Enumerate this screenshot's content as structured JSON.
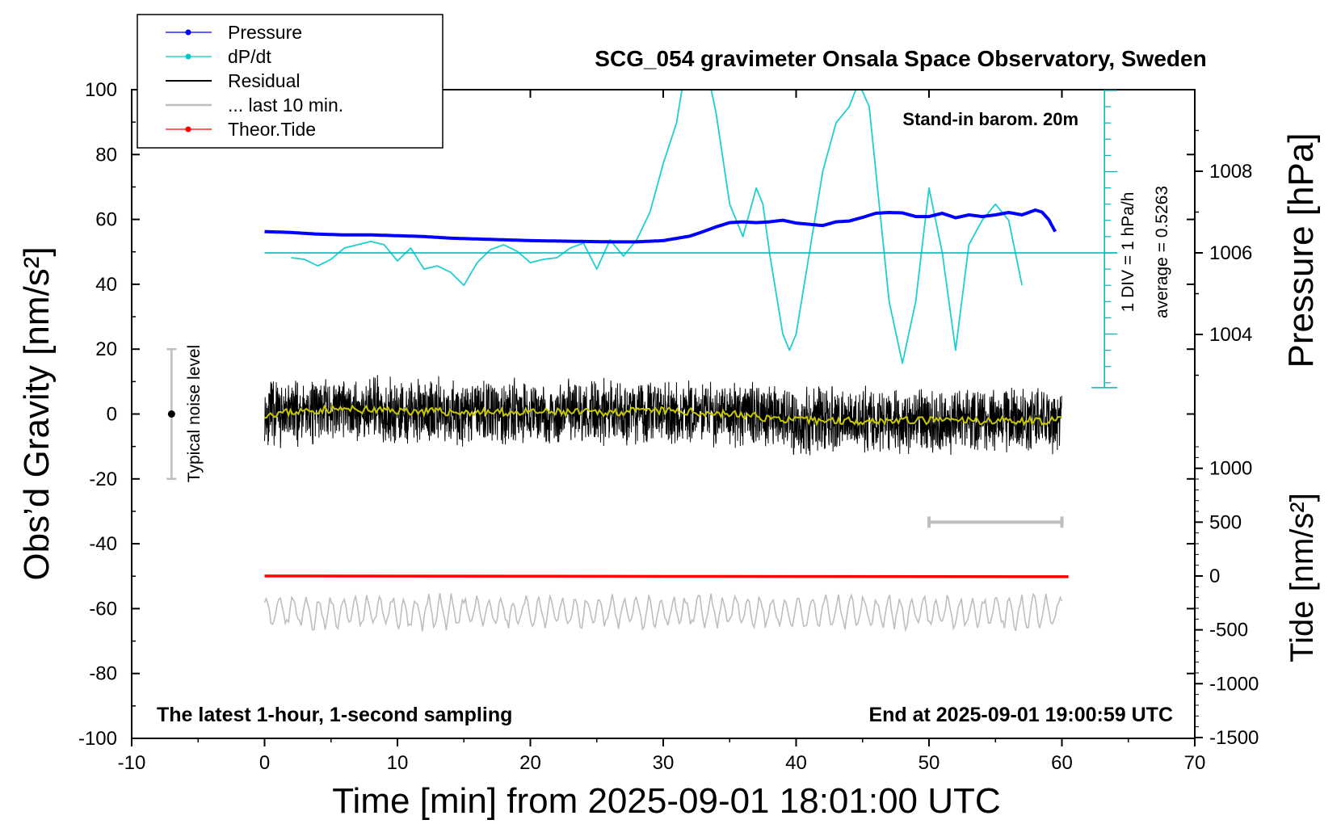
{
  "chart_data": {
    "type": "line",
    "title": "SCG_054 gravimeter Onsala Space Observatory, Sweden",
    "xlabel": "Time [min] from 2025-09-01 18:01:00 UTC",
    "ylabel_left": "Obs’d Gravity [nm/s²]",
    "ylabel_right_pressure": "Pressure [hPa]",
    "ylabel_right_tide": "Tide [nm/s²]",
    "xlim": [
      -10,
      70
    ],
    "ylim_left": [
      -100,
      100
    ],
    "x_ticks": [
      "-10",
      "0",
      "10",
      "20",
      "30",
      "40",
      "50",
      "60",
      "70"
    ],
    "y_ticks_left": [
      "100",
      "80",
      "60",
      "40",
      "20",
      "0",
      "-20",
      "-40",
      "-60",
      "-80",
      "-100"
    ],
    "pressure_ticks": [
      "1008",
      "1006",
      "1004"
    ],
    "tide_ticks": [
      "1000",
      "500",
      "0",
      "-500",
      "-1000",
      "-1500"
    ],
    "annotations": {
      "stand_in": "Stand-in barom. 20m",
      "div_label": "1 DIV = 1 hPa/h",
      "average_label": "average = 0.5263",
      "noise_label": "Typical noise level",
      "latest_label": "The latest 1-hour, 1-second sampling",
      "end_label": "End at 2025-09-01 19:00:59 UTC"
    },
    "legend": [
      {
        "name": "Pressure",
        "color": "#0000ff",
        "marker": true
      },
      {
        "name": "dP/dt",
        "color": "#00c8c8",
        "marker": true
      },
      {
        "name": "Residual",
        "color": "#000000",
        "marker": false
      },
      {
        "name": "... last 10 min.",
        "color": "#bebebe",
        "marker": false
      },
      {
        "name": "Theor.Tide",
        "color": "#ff0000",
        "marker": true
      }
    ],
    "series": [
      {
        "name": "Pressure",
        "units": "hPa",
        "color": "#0000ff",
        "x": [
          0,
          2,
          4,
          6,
          8,
          10,
          12,
          14,
          16,
          18,
          20,
          22,
          24,
          26,
          28,
          30,
          32,
          33,
          34,
          35,
          36,
          37,
          38,
          39,
          40,
          41,
          42,
          43,
          44,
          45,
          46,
          47,
          48,
          49,
          50,
          51,
          52,
          53,
          54,
          55,
          56,
          57,
          58,
          58.5,
          59,
          59.5
        ],
        "y": [
          1006.52,
          1006.5,
          1006.46,
          1006.44,
          1006.44,
          1006.42,
          1006.4,
          1006.36,
          1006.34,
          1006.32,
          1006.3,
          1006.29,
          1006.28,
          1006.27,
          1006.27,
          1006.3,
          1006.41,
          1006.52,
          1006.64,
          1006.74,
          1006.76,
          1006.74,
          1006.76,
          1006.8,
          1006.73,
          1006.7,
          1006.67,
          1006.76,
          1006.78,
          1006.87,
          1006.97,
          1006.99,
          1006.98,
          1006.89,
          1006.89,
          1006.97,
          1006.86,
          1006.93,
          1006.89,
          1006.93,
          1006.99,
          1006.93,
          1007.05,
          1007.0,
          1006.82,
          1006.52
        ]
      },
      {
        "name": "dP/dt",
        "units": "hPa/h",
        "color": "#00c8c8",
        "x": [
          2,
          3,
          4,
          5,
          6,
          7,
          8,
          9,
          10,
          11,
          12,
          13,
          14,
          15,
          16,
          17,
          18,
          19,
          20,
          21,
          22,
          23,
          24,
          25,
          26,
          27,
          28,
          29,
          30,
          31,
          31.5,
          32,
          33,
          33.5,
          34,
          35,
          36,
          37,
          37.5,
          38,
          39,
          39.5,
          40,
          41,
          42,
          43,
          44,
          44.7,
          45.5,
          46,
          47,
          48,
          49,
          50,
          51,
          52,
          53,
          54,
          55,
          56,
          57
        ],
        "y": [
          -0.3,
          -0.4,
          -0.8,
          -0.4,
          0.3,
          0.5,
          0.7,
          0.5,
          -0.5,
          0.3,
          -1.0,
          -0.8,
          -1.2,
          -2.0,
          -0.6,
          0.2,
          0.5,
          0.1,
          -0.6,
          -0.4,
          -0.3,
          0.3,
          0.6,
          -1.0,
          0.8,
          -0.2,
          0.8,
          2.5,
          5.5,
          8.0,
          10.5,
          10.5,
          10.5,
          10.5,
          8.5,
          3.0,
          1.0,
          4.0,
          3.0,
          0.0,
          -5.0,
          -6.0,
          -5.0,
          0.0,
          5.0,
          8.0,
          9.0,
          10.5,
          9.0,
          5.0,
          -3.0,
          -6.8,
          -3.0,
          4.0,
          0.0,
          -6.0,
          0.5,
          2.0,
          3.0,
          2.0,
          -2.0
        ]
      },
      {
        "name": "Residual",
        "units": "nm/s²",
        "color": "#000000",
        "x": [
          0,
          5,
          10,
          15,
          20,
          25,
          30,
          35,
          40,
          45,
          50,
          55,
          60
        ],
        "y": [
          0,
          1.5,
          1,
          0.5,
          0.5,
          0.5,
          1,
          0,
          -2,
          -2,
          -2,
          -2,
          -2
        ]
      },
      {
        "name": "... last 10 min.",
        "units": "nm/s²",
        "color": "#bebebe",
        "x": [
          0,
          10,
          20,
          30,
          40,
          50,
          60
        ],
        "y": [
          -61,
          -61,
          -61,
          -61,
          -61,
          -61,
          -61
        ]
      },
      {
        "name": "Theor.Tide",
        "units": "nm/s²",
        "color": "#ff0000",
        "x": [
          0,
          10,
          20,
          30,
          40,
          50,
          60.5
        ],
        "y": [
          0,
          0,
          0,
          0,
          0,
          0,
          0
        ]
      }
    ]
  }
}
